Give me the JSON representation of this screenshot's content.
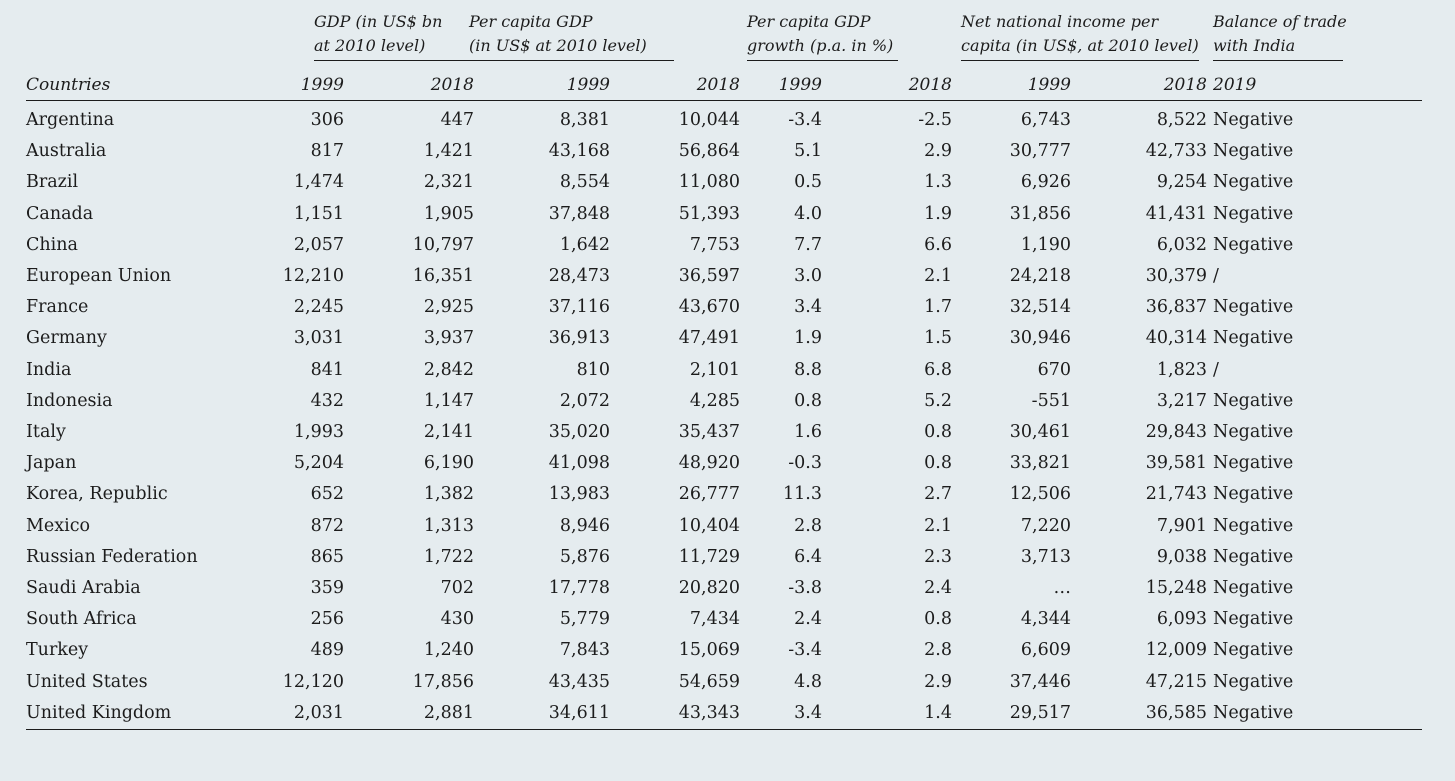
{
  "header": {
    "countries_label": "Countries",
    "groups": [
      {
        "line1": "GDP (in US$ bn",
        "line2": "at 2010 level)"
      },
      {
        "line1": "Per capita GDP",
        "line2": "(in US$ at 2010 level)"
      },
      {
        "line1": "Per capita GDP",
        "line2": "growth (p.a. in %)"
      },
      {
        "line1": "Net national income per",
        "line2": "capita (in US$, at 2010 level)"
      },
      {
        "line1": "Balance of trade",
        "line2": "with India"
      }
    ],
    "years": [
      "1999",
      "2018",
      "1999",
      "2018",
      "1999",
      "2018",
      "1999",
      "2018",
      "2019"
    ]
  },
  "rows": [
    {
      "country": "Argentina",
      "v": [
        "306",
        "447",
        "8,381",
        "10,044",
        "-3.4",
        "-2.5",
        "6,743",
        "8,522",
        "Negative"
      ]
    },
    {
      "country": "Australia",
      "v": [
        "817",
        "1,421",
        "43,168",
        "56,864",
        "5.1",
        "2.9",
        "30,777",
        "42,733",
        "Negative"
      ]
    },
    {
      "country": "Brazil",
      "v": [
        "1,474",
        "2,321",
        "8,554",
        "11,080",
        "0.5",
        "1.3",
        "6,926",
        "9,254",
        "Negative"
      ]
    },
    {
      "country": "Canada",
      "v": [
        "1,151",
        "1,905",
        "37,848",
        "51,393",
        "4.0",
        "1.9",
        "31,856",
        "41,431",
        "Negative"
      ]
    },
    {
      "country": "China",
      "v": [
        "2,057",
        "10,797",
        "1,642",
        "7,753",
        "7.7",
        "6.6",
        "1,190",
        "6,032",
        "Negative"
      ]
    },
    {
      "country": "European Union",
      "v": [
        "12,210",
        "16,351",
        "28,473",
        "36,597",
        "3.0",
        "2.1",
        "24,218",
        "30,379",
        "/"
      ]
    },
    {
      "country": "France",
      "v": [
        "2,245",
        "2,925",
        "37,116",
        "43,670",
        "3.4",
        "1.7",
        "32,514",
        "36,837",
        "Negative"
      ]
    },
    {
      "country": "Germany",
      "v": [
        "3,031",
        "3,937",
        "36,913",
        "47,491",
        "1.9",
        "1.5",
        "30,946",
        "40,314",
        "Negative"
      ]
    },
    {
      "country": "India",
      "v": [
        "841",
        "2,842",
        "810",
        "2,101",
        "8.8",
        "6.8",
        "670",
        "1,823",
        "/"
      ]
    },
    {
      "country": "Indonesia",
      "v": [
        "432",
        "1,147",
        "2,072",
        "4,285",
        "0.8",
        "5.2",
        "-551",
        "3,217",
        "Negative"
      ]
    },
    {
      "country": "Italy",
      "v": [
        "1,993",
        "2,141",
        "35,020",
        "35,437",
        "1.6",
        "0.8",
        "30,461",
        "29,843",
        "Negative"
      ]
    },
    {
      "country": "Japan",
      "v": [
        "5,204",
        "6,190",
        "41,098",
        "48,920",
        "-0.3",
        "0.8",
        "33,821",
        "39,581",
        "Negative"
      ]
    },
    {
      "country": "Korea, Republic",
      "v": [
        "652",
        "1,382",
        "13,983",
        "26,777",
        "11.3",
        "2.7",
        "12,506",
        "21,743",
        "Negative"
      ]
    },
    {
      "country": "Mexico",
      "v": [
        "872",
        "1,313",
        "8,946",
        "10,404",
        "2.8",
        "2.1",
        "7,220",
        "7,901",
        "Negative"
      ]
    },
    {
      "country": "Russian Federation",
      "v": [
        "865",
        "1,722",
        "5,876",
        "11,729",
        "6.4",
        "2.3",
        "3,713",
        "9,038",
        "Negative"
      ]
    },
    {
      "country": "Saudi Arabia",
      "v": [
        "359",
        "702",
        "17,778",
        "20,820",
        "-3.8",
        "2.4",
        "…",
        "15,248",
        "Negative"
      ]
    },
    {
      "country": "South Africa",
      "v": [
        "256",
        "430",
        "5,779",
        "7,434",
        "2.4",
        "0.8",
        "4,344",
        "6,093",
        "Negative"
      ]
    },
    {
      "country": "Turkey",
      "v": [
        "489",
        "1,240",
        "7,843",
        "15,069",
        "-3.4",
        "2.8",
        "6,609",
        "12,009",
        "Negative"
      ]
    },
    {
      "country": "United States",
      "v": [
        "12,120",
        "17,856",
        "43,435",
        "54,659",
        "4.8",
        "2.9",
        "37,446",
        "47,215",
        "Negative"
      ]
    },
    {
      "country": "United Kingdom",
      "v": [
        "2,031",
        "2,881",
        "34,611",
        "43,343",
        "3.4",
        "1.4",
        "29,517",
        "36,585",
        "Negative"
      ]
    }
  ]
}
